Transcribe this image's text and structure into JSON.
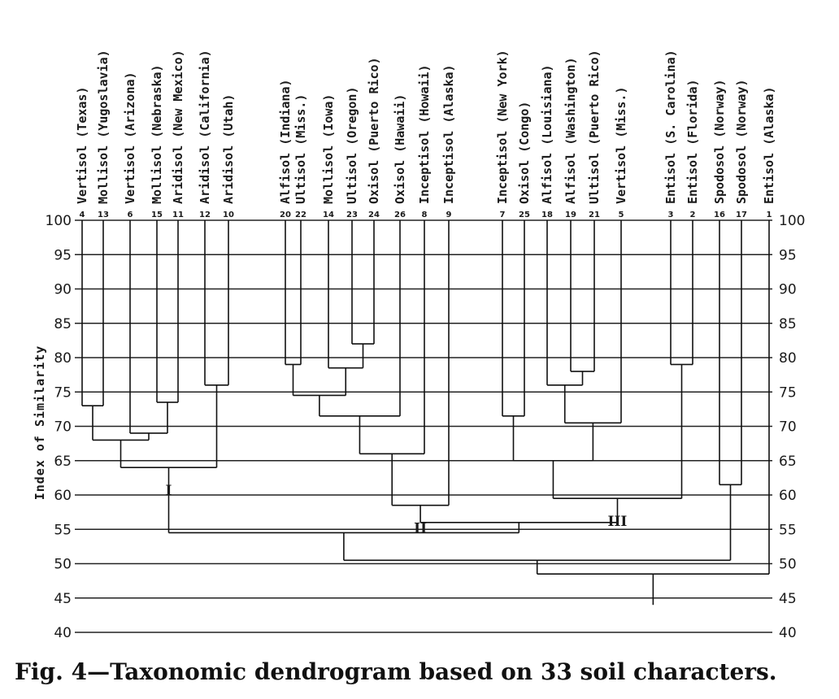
{
  "figure": {
    "caption": "Fig. 4—Taxonomic dendrogram based on 33 soil characters.",
    "y_axis_label": "Index of Similarity",
    "y_ticks": [
      100,
      95,
      90,
      85,
      80,
      75,
      70,
      65,
      60,
      55,
      50,
      45,
      40
    ],
    "leaves": [
      {
        "id": "4",
        "name": "Vertisol (Texas)"
      },
      {
        "id": "13",
        "name": "Mollisol (Yugoslavia)"
      },
      {
        "id": "6",
        "name": "Vertisol (Arizona)"
      },
      {
        "id": "15",
        "name": "Mollisol (Nebraska)"
      },
      {
        "id": "11",
        "name": "Aridisol (New Mexico)"
      },
      {
        "id": "12",
        "name": "Aridisol (California)"
      },
      {
        "id": "10",
        "name": "Aridisol (Utah)"
      },
      {
        "id": "20",
        "name": "Alfisol (Indiana)"
      },
      {
        "id": "22",
        "name": "Ultisol (Miss.)"
      },
      {
        "id": "14",
        "name": "Mollisol (Iowa)"
      },
      {
        "id": "23",
        "name": "Ultisol (Oregon)"
      },
      {
        "id": "24",
        "name": "Oxisol (Puerto Rico)"
      },
      {
        "id": "26",
        "name": "Oxisol (Hawaii)"
      },
      {
        "id": "8",
        "name": "Inceptisol (Howaii)"
      },
      {
        "id": "9",
        "name": "Inceptisol (Alaska)"
      },
      {
        "id": "7",
        "name": "Inceptisol (New York)"
      },
      {
        "id": "25",
        "name": "Oxisol (Congo)"
      },
      {
        "id": "18",
        "name": "Alfisol (Louisiana)"
      },
      {
        "id": "19",
        "name": "Alfisol (Washington)"
      },
      {
        "id": "21",
        "name": "Ultisol (Puerto Rico)"
      },
      {
        "id": "5",
        "name": "Vertisol (Miss.)"
      },
      {
        "id": "3",
        "name": "Entisol (S. Carolina)"
      },
      {
        "id": "2",
        "name": "Entisol (Florida)"
      },
      {
        "id": "16",
        "name": "Spodosol (Norway)"
      },
      {
        "id": "17",
        "name": "Spodosol (Norway)"
      },
      {
        "id": "1",
        "name": "Entisol (Alaska)"
      }
    ],
    "merges": [
      {
        "left": "4",
        "right": "13",
        "similarity": 73
      },
      {
        "left": "15",
        "right": "11",
        "similarity": 73.5
      },
      {
        "left": "6",
        "right": "15+11",
        "similarity": 69
      },
      {
        "left": "4+13",
        "right": "6+15+11",
        "similarity": 68
      },
      {
        "left": "12",
        "right": "10",
        "similarity": 76
      },
      {
        "left": "4..11",
        "right": "12+10",
        "similarity": 64,
        "group": "I"
      },
      {
        "left": "23",
        "right": "24",
        "similarity": 82
      },
      {
        "left": "20",
        "right": "22",
        "similarity": 79
      },
      {
        "left": "14",
        "right": "23+24",
        "similarity": 78.5
      },
      {
        "left": "20+22",
        "right": "14+23+24",
        "similarity": 74.5
      },
      {
        "left": "20..24",
        "right": "26",
        "similarity": 71.5
      },
      {
        "left": "20..26",
        "right": "8",
        "similarity": 66
      },
      {
        "left": "20..8",
        "right": "9",
        "similarity": 58.5,
        "group": "II"
      },
      {
        "left": "19",
        "right": "21",
        "similarity": 78
      },
      {
        "left": "18",
        "right": "19+21",
        "similarity": 76
      },
      {
        "left": "18..21",
        "right": "5",
        "similarity": 70.5
      },
      {
        "left": "7",
        "right": "25",
        "similarity": 71.5
      },
      {
        "left": "7+25",
        "right": "18..5",
        "similarity": 65
      },
      {
        "left": "3",
        "right": "2",
        "similarity": 79
      },
      {
        "left": "7..5",
        "right": "3+2",
        "similarity": 59.5,
        "group": "III"
      },
      {
        "left": "16",
        "right": "17",
        "similarity": 61.5
      },
      {
        "left": "II",
        "right": "III",
        "similarity": 56
      },
      {
        "left": "I",
        "right": "II+III",
        "similarity": 54.5
      },
      {
        "left": "I..III",
        "right": "16+17",
        "similarity": 50.5
      },
      {
        "left": "I..17",
        "right": "1",
        "similarity": 48.5
      },
      {
        "left": "root",
        "right": "",
        "similarity": 44
      }
    ],
    "group_labels": [
      "I",
      "II",
      "III"
    ]
  }
}
